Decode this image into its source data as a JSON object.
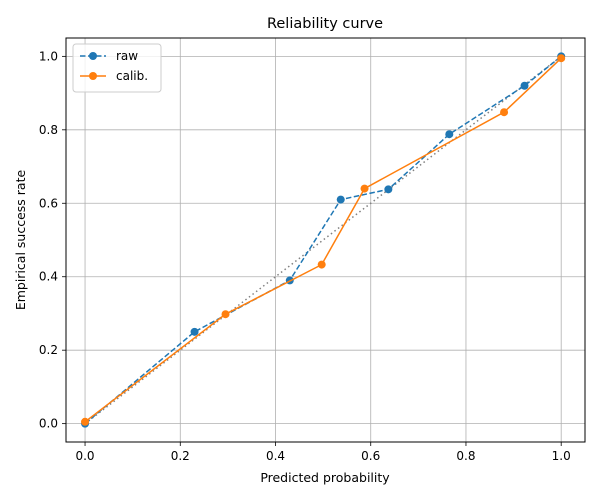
{
  "chart_data": {
    "type": "line",
    "title": "Reliability curve",
    "xlabel": "Predicted probability",
    "ylabel": "Empirical success rate",
    "xlim": [
      -0.04,
      1.05
    ],
    "ylim": [
      -0.05,
      1.05
    ],
    "xticks": [
      0.0,
      0.2,
      0.4,
      0.6,
      0.8,
      1.0
    ],
    "yticks": [
      0.0,
      0.2,
      0.4,
      0.6,
      0.8,
      1.0
    ],
    "xtick_labels": [
      "0.0",
      "0.2",
      "0.4",
      "0.6",
      "0.8",
      "1.0"
    ],
    "ytick_labels": [
      "0.0",
      "0.2",
      "0.4",
      "0.6",
      "0.8",
      "1.0"
    ],
    "grid": true,
    "legend_position": "top-left",
    "reference_line": {
      "x": [
        0,
        1
      ],
      "y": [
        0,
        1
      ],
      "style": "dotted",
      "color": "#808080"
    },
    "series": [
      {
        "name": "raw",
        "color": "#1f77b4",
        "style": "dashed",
        "marker": "circle",
        "x": [
          0.0,
          0.23,
          0.43,
          0.537,
          0.637,
          0.765,
          0.923,
          1.0
        ],
        "y": [
          0.0,
          0.25,
          0.39,
          0.61,
          0.638,
          0.788,
          0.92,
          1.0
        ]
      },
      {
        "name": "calib.",
        "color": "#ff7f0e",
        "style": "solid",
        "marker": "circle",
        "x": [
          0.0,
          0.295,
          0.497,
          0.587,
          0.88,
          1.0
        ],
        "y": [
          0.005,
          0.298,
          0.433,
          0.64,
          0.848,
          0.995
        ]
      }
    ]
  }
}
